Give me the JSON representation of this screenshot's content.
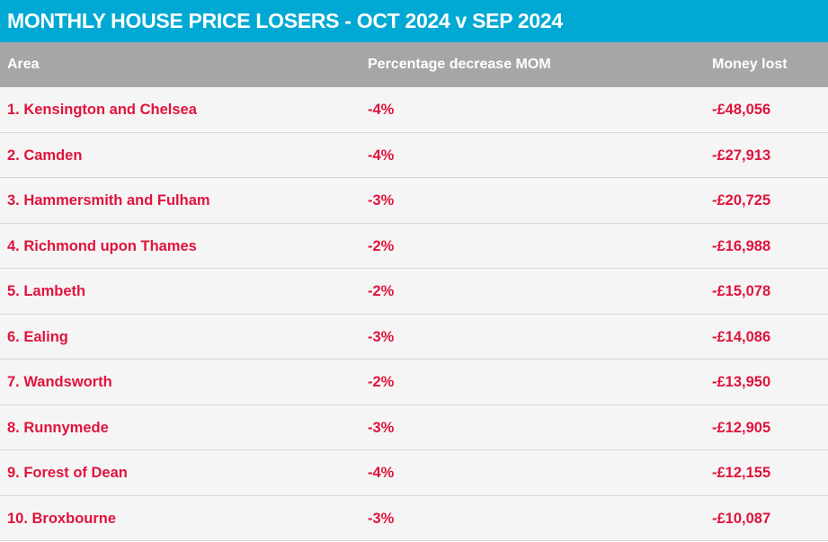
{
  "title": "MONTHLY HOUSE PRICE LOSERS - OCT 2024 v SEP 2024",
  "colors": {
    "title_bg": "#00a9d4",
    "header_bg": "#a6a6a6",
    "row_bg": "#f5f5f5",
    "row_text": "#e0143c"
  },
  "chart_data": {
    "type": "table",
    "columns": [
      "Area",
      "Percentage decrease MOM",
      "Money lost"
    ],
    "rows": [
      [
        "1. Kensington and Chelsea",
        "-4%",
        "-£48,056"
      ],
      [
        "2. Camden",
        "-4%",
        "-£27,913"
      ],
      [
        "3. Hammersmith and Fulham",
        "-3%",
        "-£20,725"
      ],
      [
        "4. Richmond upon Thames",
        "-2%",
        "-£16,988"
      ],
      [
        "5. Lambeth",
        "-2%",
        "-£15,078"
      ],
      [
        "6. Ealing",
        "-3%",
        "-£14,086"
      ],
      [
        "7. Wandsworth",
        "-2%",
        "-£13,950"
      ],
      [
        "8. Runnymede",
        "-3%",
        "-£12,905"
      ],
      [
        "9. Forest of Dean",
        "-4%",
        "-£12,155"
      ],
      [
        "10. Broxbourne",
        "-3%",
        "-£10,087"
      ]
    ]
  }
}
